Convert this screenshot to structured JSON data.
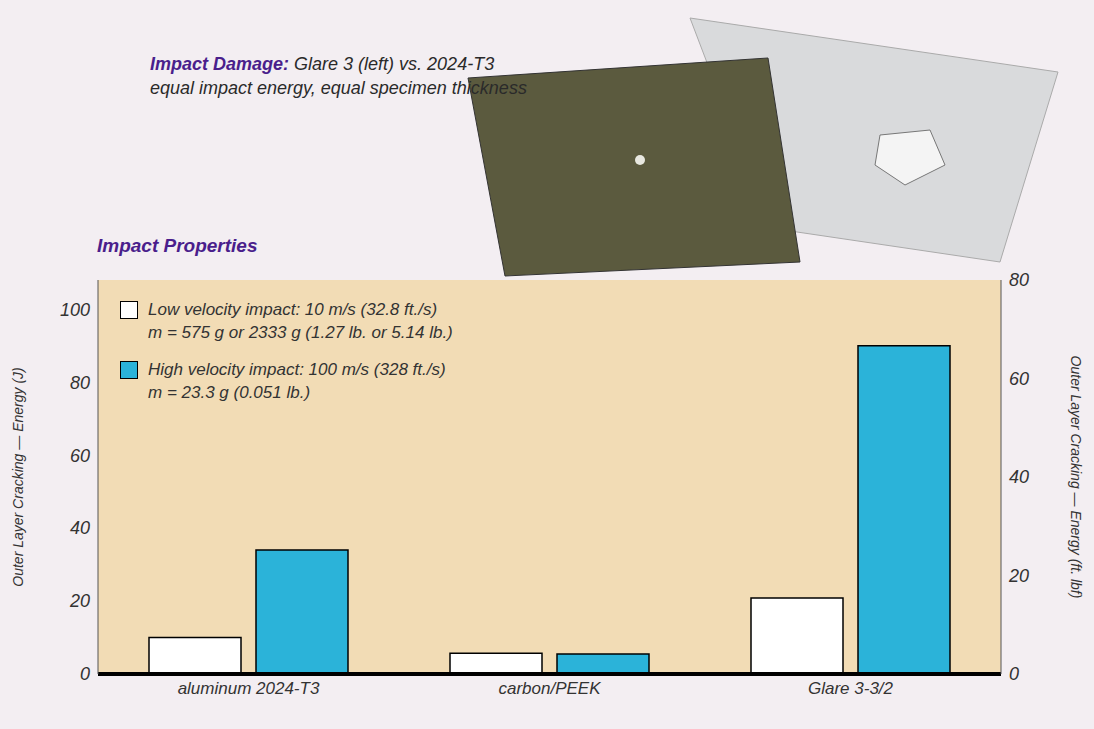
{
  "figure_caption": {
    "label": "Impact Damage:",
    "lines": [
      "Glare 3 (left) vs. 2024-T3",
      "equal impact energy, equal specimen thickness"
    ]
  },
  "chart_data": {
    "type": "bar",
    "title": "Impact Properties",
    "categories": [
      "aluminum 2024-T3",
      "carbon/PEEK",
      "Glare 3-3/2"
    ],
    "series": [
      {
        "name": "Low velocity impact: 10 m/s (32.8 ft./s)\nm = 575 g or 2333 g (1.27 lb. or 5.14 lb.)",
        "color": "#ffffff",
        "values": [
          10,
          5.7,
          20.8
        ]
      },
      {
        "name": "High velocity impact: 100 m/s (328 ft./s)\nm = 23.3 g (0.051 lb.)",
        "color": "#2bb3d9",
        "values": [
          34,
          5.5,
          90
        ]
      }
    ],
    "ylabel": "Outer Layer Cracking — Energy (J)",
    "ylim": [
      0,
      108
    ],
    "yticks": [
      0,
      20,
      40,
      60,
      80,
      100
    ],
    "y2label": "Outer Layer Cracking — Energy (ft. lbf)",
    "y2lim": [
      0,
      80
    ],
    "y2ticks": [
      0,
      20,
      40,
      60,
      80
    ],
    "grid": false,
    "legend": "upper left"
  }
}
